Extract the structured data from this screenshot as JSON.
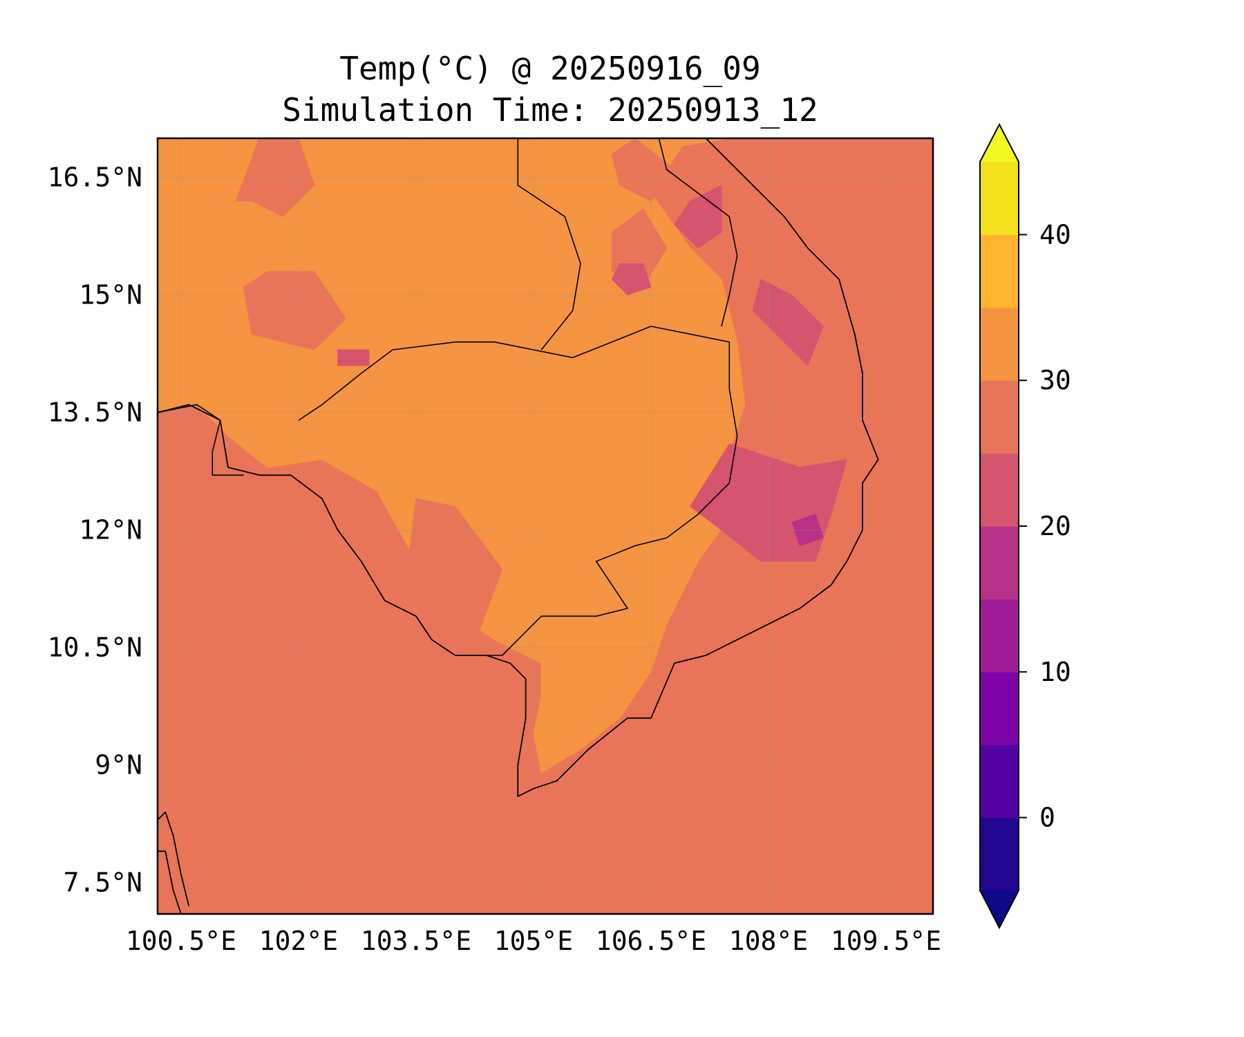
{
  "title": {
    "line1": "Temp(°C) @ 20250916_09",
    "line2": "Simulation Time: 20250913_12"
  },
  "map": {
    "lon_range": [
      100.2,
      110.1
    ],
    "lat_range": [
      7.1,
      17.0
    ],
    "x_ticks": [
      {
        "value": 100.5,
        "label": "100.5°E"
      },
      {
        "value": 102.0,
        "label": "102°E"
      },
      {
        "value": 103.5,
        "label": "103.5°E"
      },
      {
        "value": 105.0,
        "label": "105°E"
      },
      {
        "value": 106.5,
        "label": "106.5°E"
      },
      {
        "value": 108.0,
        "label": "108°E"
      },
      {
        "value": 109.5,
        "label": "109.5°E"
      }
    ],
    "y_ticks": [
      {
        "value": 16.5,
        "label": "16.5°N"
      },
      {
        "value": 15.0,
        "label": "15°N"
      },
      {
        "value": 13.5,
        "label": "13.5°N"
      },
      {
        "value": 12.0,
        "label": "12°N"
      },
      {
        "value": 10.5,
        "label": "10.5°N"
      },
      {
        "value": 9.0,
        "label": "9°N"
      },
      {
        "value": 7.5,
        "label": "7.5°N"
      }
    ],
    "gridlines": true,
    "background_band_color": "#e97558",
    "field": [
      {
        "band": "30-35",
        "color": "#f59441",
        "polygon": [
          [
            100.2,
            13.5
          ],
          [
            100.7,
            13.6
          ],
          [
            101.1,
            13.2
          ],
          [
            101.6,
            12.8
          ],
          [
            102.3,
            12.9
          ],
          [
            103.0,
            12.5
          ],
          [
            103.5,
            11.6
          ],
          [
            103.9,
            11.0
          ],
          [
            104.5,
            10.6
          ],
          [
            105.1,
            10.3
          ],
          [
            105.1,
            9.9
          ],
          [
            105.0,
            9.4
          ],
          [
            105.1,
            8.9
          ],
          [
            105.6,
            9.2
          ],
          [
            106.1,
            9.6
          ],
          [
            106.5,
            10.2
          ],
          [
            106.7,
            10.8
          ],
          [
            107.1,
            11.6
          ],
          [
            107.6,
            12.3
          ],
          [
            107.5,
            13.0
          ],
          [
            107.7,
            13.6
          ],
          [
            107.6,
            14.4
          ],
          [
            107.4,
            15.2
          ],
          [
            107.0,
            15.6
          ],
          [
            106.5,
            16.3
          ],
          [
            106.9,
            16.9
          ],
          [
            107.5,
            17.0
          ],
          [
            100.2,
            17.0
          ]
        ]
      },
      {
        "band": "25-30",
        "color": "#e97558",
        "polygon": [
          [
            101.3,
            15.1
          ],
          [
            101.6,
            15.3
          ],
          [
            102.2,
            15.3
          ],
          [
            102.6,
            14.7
          ],
          [
            102.2,
            14.3
          ],
          [
            101.4,
            14.5
          ]
        ]
      },
      {
        "band": "25-30",
        "color": "#e97558",
        "polygon": [
          [
            101.2,
            16.2
          ],
          [
            101.5,
            17.0
          ],
          [
            102.0,
            17.0
          ],
          [
            102.2,
            16.4
          ],
          [
            101.8,
            16.0
          ],
          [
            101.4,
            16.2
          ]
        ]
      },
      {
        "band": "25-30",
        "color": "#e97558",
        "polygon": [
          [
            103.5,
            12.4
          ],
          [
            104.0,
            12.3
          ],
          [
            104.6,
            11.5
          ],
          [
            104.3,
            10.7
          ],
          [
            103.8,
            10.9
          ],
          [
            103.4,
            11.6
          ]
        ]
      },
      {
        "band": "25-30",
        "color": "#e97558",
        "polygon": [
          [
            106.0,
            16.8
          ],
          [
            106.3,
            17.0
          ],
          [
            106.8,
            16.6
          ],
          [
            106.5,
            16.2
          ],
          [
            106.1,
            16.4
          ]
        ]
      },
      {
        "band": "25-30",
        "color": "#e97558",
        "polygon": [
          [
            106.0,
            15.8
          ],
          [
            106.4,
            16.1
          ],
          [
            106.7,
            15.6
          ],
          [
            106.4,
            15.1
          ],
          [
            106.0,
            15.3
          ]
        ]
      },
      {
        "band": "20-25",
        "color": "#d5546e",
        "polygon": [
          [
            107.5,
            13.1
          ],
          [
            108.4,
            12.8
          ],
          [
            109.0,
            12.9
          ],
          [
            108.8,
            12.2
          ],
          [
            108.6,
            11.6
          ],
          [
            107.9,
            11.6
          ],
          [
            107.4,
            12.0
          ],
          [
            107.0,
            12.3
          ]
        ]
      },
      {
        "band": "20-25",
        "color": "#d5546e",
        "polygon": [
          [
            107.9,
            15.2
          ],
          [
            108.3,
            15.0
          ],
          [
            108.7,
            14.6
          ],
          [
            108.5,
            14.1
          ],
          [
            108.1,
            14.5
          ],
          [
            107.8,
            14.8
          ]
        ]
      },
      {
        "band": "20-25",
        "color": "#d5546e",
        "polygon": [
          [
            107.0,
            16.2
          ],
          [
            107.4,
            16.4
          ],
          [
            107.4,
            15.8
          ],
          [
            107.1,
            15.6
          ],
          [
            106.8,
            15.9
          ]
        ]
      },
      {
        "band": "20-25",
        "color": "#d5546e",
        "polygon": [
          [
            106.1,
            15.4
          ],
          [
            106.4,
            15.4
          ],
          [
            106.5,
            15.1
          ],
          [
            106.2,
            15.0
          ],
          [
            106.0,
            15.2
          ]
        ]
      },
      {
        "band": "15-20",
        "color": "#b83289",
        "polygon": [
          [
            108.3,
            12.1
          ],
          [
            108.6,
            12.2
          ],
          [
            108.7,
            11.9
          ],
          [
            108.4,
            11.8
          ]
        ]
      },
      {
        "band": "20-25",
        "color": "#d5546e",
        "polygon": [
          [
            102.5,
            14.3
          ],
          [
            102.9,
            14.3
          ],
          [
            102.9,
            14.1
          ],
          [
            102.5,
            14.1
          ]
        ]
      }
    ],
    "coastlines": [
      [
        [
          100.2,
          13.5
        ],
        [
          100.6,
          13.6
        ],
        [
          101.0,
          13.4
        ],
        [
          101.1,
          12.8
        ],
        [
          101.5,
          12.7
        ],
        [
          101.9,
          12.7
        ],
        [
          102.3,
          12.4
        ],
        [
          102.5,
          12.0
        ],
        [
          102.8,
          11.6
        ],
        [
          103.1,
          11.1
        ],
        [
          103.5,
          10.9
        ],
        [
          103.7,
          10.6
        ],
        [
          104.0,
          10.4
        ],
        [
          104.4,
          10.4
        ],
        [
          104.7,
          10.3
        ],
        [
          104.9,
          10.1
        ],
        [
          104.9,
          9.6
        ],
        [
          104.8,
          9.0
        ],
        [
          104.8,
          8.6
        ],
        [
          105.0,
          8.7
        ],
        [
          105.3,
          8.8
        ],
        [
          105.7,
          9.2
        ],
        [
          106.2,
          9.6
        ],
        [
          106.5,
          9.6
        ],
        [
          106.8,
          10.3
        ],
        [
          107.2,
          10.4
        ],
        [
          107.6,
          10.6
        ],
        [
          108.0,
          10.8
        ],
        [
          108.4,
          11.0
        ],
        [
          108.8,
          11.3
        ],
        [
          109.0,
          11.6
        ],
        [
          109.2,
          12.0
        ],
        [
          109.2,
          12.6
        ],
        [
          109.4,
          12.9
        ],
        [
          109.2,
          13.4
        ],
        [
          109.2,
          14.0
        ],
        [
          109.1,
          14.5
        ],
        [
          108.9,
          15.2
        ],
        [
          108.5,
          15.6
        ],
        [
          108.2,
          16.0
        ],
        [
          107.8,
          16.4
        ],
        [
          107.4,
          16.8
        ],
        [
          107.2,
          17.0
        ]
      ],
      [
        [
          100.2,
          7.9
        ],
        [
          100.3,
          7.9
        ],
        [
          100.4,
          7.4
        ],
        [
          100.5,
          7.1
        ]
      ],
      [
        [
          100.2,
          8.3
        ],
        [
          100.3,
          8.4
        ],
        [
          100.4,
          8.1
        ],
        [
          100.5,
          7.6
        ],
        [
          100.6,
          7.2
        ]
      ]
    ],
    "borders": [
      [
        [
          102.0,
          13.4
        ],
        [
          102.3,
          13.6
        ],
        [
          102.8,
          14.0
        ],
        [
          103.2,
          14.3
        ],
        [
          104.0,
          14.4
        ],
        [
          104.5,
          14.4
        ],
        [
          105.0,
          14.3
        ],
        [
          105.5,
          14.2
        ],
        [
          106.0,
          14.4
        ],
        [
          106.5,
          14.6
        ],
        [
          107.0,
          14.5
        ],
        [
          107.5,
          14.4
        ],
        [
          107.5,
          13.8
        ],
        [
          107.6,
          13.2
        ],
        [
          107.5,
          12.6
        ],
        [
          107.1,
          12.2
        ],
        [
          106.7,
          11.9
        ],
        [
          106.3,
          11.8
        ],
        [
          105.8,
          11.6
        ],
        [
          106.2,
          11.0
        ],
        [
          105.8,
          10.9
        ],
        [
          105.1,
          10.9
        ],
        [
          104.6,
          10.4
        ],
        [
          104.4,
          10.4
        ]
      ],
      [
        [
          104.8,
          17.0
        ],
        [
          104.8,
          16.4
        ],
        [
          105.4,
          16.0
        ],
        [
          105.6,
          15.4
        ],
        [
          105.5,
          14.8
        ],
        [
          105.1,
          14.3
        ]
      ],
      [
        [
          106.6,
          17.0
        ],
        [
          106.7,
          16.6
        ],
        [
          107.1,
          16.3
        ],
        [
          107.5,
          16.0
        ],
        [
          107.6,
          15.5
        ],
        [
          107.5,
          15.0
        ],
        [
          107.4,
          14.6
        ]
      ],
      [
        [
          100.2,
          13.5
        ],
        [
          100.7,
          13.6
        ],
        [
          101.0,
          13.4
        ],
        [
          100.9,
          13.0
        ],
        [
          100.9,
          12.7
        ],
        [
          101.3,
          12.7
        ]
      ]
    ]
  },
  "colorbar": {
    "label_ticks": [
      {
        "value": 0,
        "label": "0"
      },
      {
        "value": 10,
        "label": "10"
      },
      {
        "value": 20,
        "label": "20"
      },
      {
        "value": 30,
        "label": "30"
      },
      {
        "value": 40,
        "label": "40"
      }
    ],
    "range": [
      -5,
      45
    ],
    "extend": "both",
    "under_color": "#0d0887",
    "over_color": "#f0f921",
    "bands": [
      {
        "from": -5,
        "to": 0,
        "color": "#220690"
      },
      {
        "from": 0,
        "to": 5,
        "color": "#5302a3"
      },
      {
        "from": 5,
        "to": 10,
        "color": "#7e03a8"
      },
      {
        "from": 10,
        "to": 15,
        "color": "#a21d9a"
      },
      {
        "from": 15,
        "to": 20,
        "color": "#b83289"
      },
      {
        "from": 20,
        "to": 25,
        "color": "#d5546e"
      },
      {
        "from": 25,
        "to": 30,
        "color": "#e97558"
      },
      {
        "from": 30,
        "to": 35,
        "color": "#f59441"
      },
      {
        "from": 35,
        "to": 40,
        "color": "#fdb42f"
      },
      {
        "from": 40,
        "to": 45,
        "color": "#f4e11e"
      }
    ]
  }
}
